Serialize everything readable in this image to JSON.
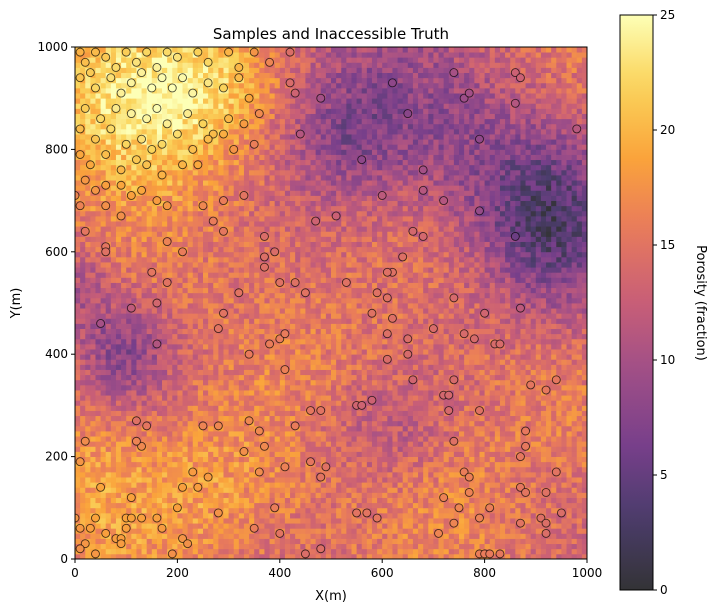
{
  "chart_data": {
    "type": "heatmap",
    "title": "Samples and Inaccessible Truth",
    "xlabel": "X(m)",
    "ylabel": "Y(m)",
    "xlim": [
      0,
      1000
    ],
    "ylim": [
      0,
      1000
    ],
    "x_ticks": [
      "0",
      "200",
      "400",
      "600",
      "800",
      "1000"
    ],
    "y_ticks": [
      "0",
      "200",
      "400",
      "600",
      "800",
      "1000"
    ],
    "colorbar": {
      "label": "Porosity (fraction)",
      "range": [
        0,
        25
      ],
      "ticks": [
        "0",
        "5",
        "10",
        "15",
        "20",
        "25"
      ],
      "colormap": "inferno",
      "alpha": 0.8
    },
    "grid": false,
    "heatmap": {
      "nx": 100,
      "ny": 100,
      "description_of_field": "continuous porosity field; high (yellow, ~20-25) in upper-left, moderately high (orange, ~18-22) lower-left and bottom; low (purple, ~5-10) in a diagonal band from upper-right to center-right and a patch at left x~50-150, y~350-550"
    },
    "samples": {
      "marker": "circle",
      "edgecolor": "#000000",
      "points": [
        [
          10,
          990
        ],
        [
          20,
          970
        ],
        [
          30,
          950
        ],
        [
          40,
          990
        ],
        [
          60,
          980
        ],
        [
          80,
          960
        ],
        [
          100,
          990
        ],
        [
          120,
          970
        ],
        [
          140,
          990
        ],
        [
          160,
          960
        ],
        [
          180,
          990
        ],
        [
          200,
          980
        ],
        [
          240,
          990
        ],
        [
          260,
          970
        ],
        [
          300,
          990
        ],
        [
          320,
          960
        ],
        [
          350,
          990
        ],
        [
          380,
          970
        ],
        [
          10,
          940
        ],
        [
          40,
          920
        ],
        [
          70,
          940
        ],
        [
          90,
          910
        ],
        [
          110,
          930
        ],
        [
          130,
          950
        ],
        [
          150,
          920
        ],
        [
          170,
          940
        ],
        [
          190,
          920
        ],
        [
          210,
          940
        ],
        [
          230,
          910
        ],
        [
          260,
          930
        ],
        [
          290,
          920
        ],
        [
          320,
          940
        ],
        [
          340,
          900
        ],
        [
          20,
          880
        ],
        [
          50,
          860
        ],
        [
          80,
          880
        ],
        [
          110,
          870
        ],
        [
          140,
          860
        ],
        [
          160,
          880
        ],
        [
          180,
          850
        ],
        [
          220,
          870
        ],
        [
          250,
          850
        ],
        [
          270,
          830
        ],
        [
          300,
          860
        ],
        [
          330,
          850
        ],
        [
          360,
          870
        ],
        [
          10,
          840
        ],
        [
          40,
          820
        ],
        [
          70,
          840
        ],
        [
          100,
          810
        ],
        [
          130,
          820
        ],
        [
          150,
          800
        ],
        [
          170,
          810
        ],
        [
          200,
          830
        ],
        [
          230,
          800
        ],
        [
          260,
          820
        ],
        [
          290,
          830
        ],
        [
          310,
          800
        ],
        [
          350,
          810
        ],
        [
          10,
          790
        ],
        [
          30,
          770
        ],
        [
          60,
          790
        ],
        [
          90,
          760
        ],
        [
          120,
          780
        ],
        [
          140,
          770
        ],
        [
          170,
          750
        ],
        [
          210,
          770
        ],
        [
          240,
          770
        ],
        [
          20,
          740
        ],
        [
          40,
          720
        ],
        [
          60,
          730
        ],
        [
          90,
          730
        ],
        [
          110,
          710
        ],
        [
          130,
          720
        ],
        [
          160,
          700
        ],
        [
          180,
          690
        ],
        [
          250,
          690
        ],
        [
          290,
          700
        ],
        [
          330,
          710
        ],
        [
          0,
          710
        ],
        [
          10,
          690
        ],
        [
          60,
          690
        ],
        [
          90,
          670
        ],
        [
          270,
          660
        ],
        [
          290,
          640
        ],
        [
          370,
          630
        ],
        [
          390,
          600
        ],
        [
          20,
          640
        ],
        [
          60,
          610
        ],
        [
          60,
          600
        ],
        [
          180,
          620
        ],
        [
          210,
          600
        ],
        [
          370,
          590
        ],
        [
          370,
          570
        ],
        [
          400,
          540
        ],
        [
          430,
          540
        ],
        [
          150,
          560
        ],
        [
          180,
          540
        ],
        [
          160,
          500
        ],
        [
          110,
          490
        ],
        [
          50,
          460
        ],
        [
          320,
          520
        ],
        [
          290,
          480
        ],
        [
          280,
          450
        ],
        [
          400,
          430
        ],
        [
          380,
          420
        ],
        [
          160,
          420
        ],
        [
          340,
          400
        ],
        [
          410,
          370
        ],
        [
          460,
          290
        ],
        [
          480,
          290
        ],
        [
          410,
          440
        ],
        [
          10,
          190
        ],
        [
          20,
          230
        ],
        [
          120,
          270
        ],
        [
          130,
          220
        ],
        [
          140,
          260
        ],
        [
          120,
          230
        ],
        [
          230,
          170
        ],
        [
          240,
          140
        ],
        [
          210,
          140
        ],
        [
          250,
          260
        ],
        [
          280,
          260
        ],
        [
          340,
          270
        ],
        [
          360,
          250
        ],
        [
          370,
          220
        ],
        [
          330,
          210
        ],
        [
          360,
          170
        ],
        [
          390,
          100
        ],
        [
          400,
          50
        ],
        [
          410,
          180
        ],
        [
          430,
          260
        ],
        [
          460,
          190
        ],
        [
          480,
          160
        ],
        [
          490,
          180
        ],
        [
          10,
          60
        ],
        [
          20,
          30
        ],
        [
          30,
          60
        ],
        [
          40,
          80
        ],
        [
          50,
          140
        ],
        [
          60,
          50
        ],
        [
          80,
          40
        ],
        [
          90,
          40
        ],
        [
          90,
          30
        ],
        [
          100,
          60
        ],
        [
          100,
          80
        ],
        [
          110,
          80
        ],
        [
          110,
          120
        ],
        [
          130,
          80
        ],
        [
          160,
          80
        ],
        [
          170,
          60
        ],
        [
          190,
          10
        ],
        [
          200,
          100
        ],
        [
          210,
          40
        ],
        [
          220,
          30
        ],
        [
          260,
          160
        ],
        [
          280,
          90
        ],
        [
          350,
          60
        ],
        [
          0,
          80
        ],
        [
          10,
          20
        ],
        [
          40,
          10
        ],
        [
          450,
          10
        ],
        [
          480,
          20
        ],
        [
          620,
          560
        ],
        [
          610,
          560
        ],
        [
          590,
          520
        ],
        [
          610,
          510
        ],
        [
          640,
          590
        ],
        [
          660,
          640
        ],
        [
          680,
          720
        ],
        [
          680,
          760
        ],
        [
          720,
          700
        ],
        [
          650,
          870
        ],
        [
          620,
          930
        ],
        [
          530,
          540
        ],
        [
          580,
          480
        ],
        [
          610,
          440
        ],
        [
          620,
          470
        ],
        [
          650,
          430
        ],
        [
          650,
          400
        ],
        [
          660,
          350
        ],
        [
          610,
          390
        ],
        [
          720,
          320
        ],
        [
          740,
          350
        ],
        [
          700,
          450
        ],
        [
          740,
          510
        ],
        [
          760,
          440
        ],
        [
          780,
          430
        ],
        [
          800,
          480
        ],
        [
          820,
          420
        ],
        [
          830,
          420
        ],
        [
          870,
          490
        ],
        [
          890,
          340
        ],
        [
          920,
          330
        ],
        [
          940,
          350
        ],
        [
          790,
          290
        ],
        [
          730,
          290
        ],
        [
          740,
          230
        ],
        [
          730,
          320
        ],
        [
          760,
          170
        ],
        [
          770,
          160
        ],
        [
          750,
          100
        ],
        [
          740,
          70
        ],
        [
          710,
          50
        ],
        [
          720,
          120
        ],
        [
          770,
          130
        ],
        [
          790,
          80
        ],
        [
          810,
          100
        ],
        [
          870,
          140
        ],
        [
          880,
          250
        ],
        [
          880,
          220
        ],
        [
          870,
          200
        ],
        [
          880,
          130
        ],
        [
          920,
          130
        ],
        [
          940,
          170
        ],
        [
          950,
          90
        ],
        [
          790,
          10
        ],
        [
          800,
          10
        ],
        [
          810,
          10
        ],
        [
          830,
          10
        ],
        [
          870,
          70
        ],
        [
          910,
          80
        ],
        [
          920,
          50
        ],
        [
          920,
          70
        ],
        [
          550,
          300
        ],
        [
          560,
          300
        ],
        [
          580,
          310
        ],
        [
          550,
          90
        ],
        [
          570,
          90
        ],
        [
          590,
          80
        ],
        [
          510,
          670
        ],
        [
          560,
          780
        ],
        [
          600,
          710
        ],
        [
          680,
          630
        ],
        [
          740,
          950
        ],
        [
          760,
          900
        ],
        [
          770,
          910
        ],
        [
          790,
          820
        ],
        [
          790,
          680
        ],
        [
          860,
          630
        ],
        [
          860,
          890
        ],
        [
          860,
          950
        ],
        [
          870,
          940
        ],
        [
          980,
          840
        ],
        [
          480,
          900
        ],
        [
          470,
          660
        ],
        [
          450,
          520
        ],
        [
          440,
          830
        ],
        [
          430,
          910
        ],
        [
          420,
          930
        ],
        [
          420,
          990
        ]
      ]
    }
  }
}
